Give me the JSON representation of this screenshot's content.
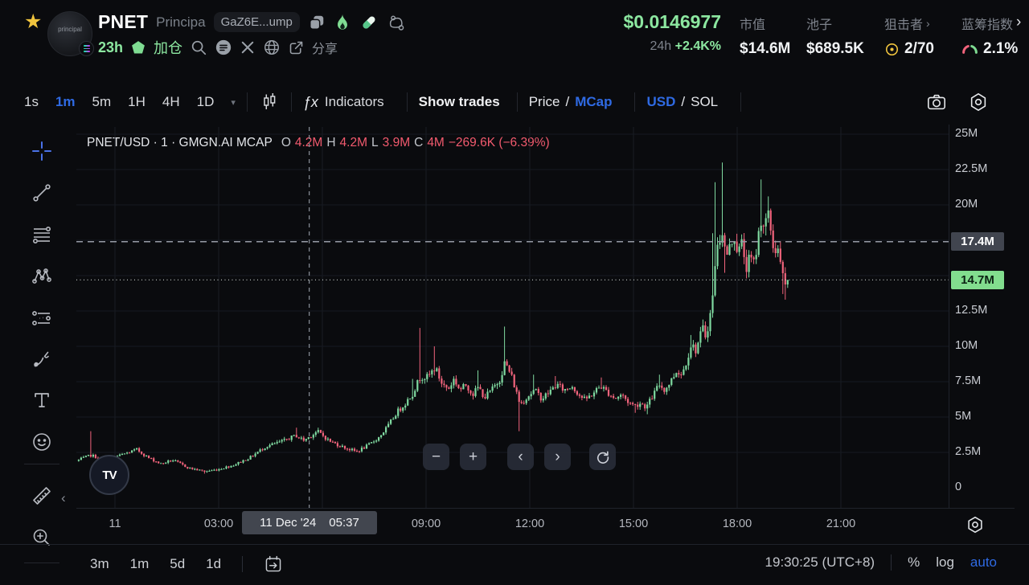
{
  "header": {
    "token_symbol": "PNET",
    "token_name": "Principa",
    "contract": "GaZ6E...ump",
    "age": "23h",
    "add_position_label": "加仓",
    "share_label": "分享",
    "price": "$0.0146977",
    "change_label": "24h",
    "change_value": "+2.4K%",
    "stats": [
      {
        "label": "市值",
        "value": "$14.6M"
      },
      {
        "label": "池子",
        "value": "$689.5K"
      },
      {
        "label": "狙击者",
        "value": "2/70"
      },
      {
        "label": "蓝筹指数",
        "value": "2.1%"
      }
    ],
    "collapse_chevron": "›"
  },
  "toolbar": {
    "intervals": [
      "1s",
      "1m",
      "5m",
      "1H",
      "4H",
      "1D"
    ],
    "active_interval": "1m",
    "caret": "▾",
    "indicators_label": "Indicators",
    "fx": "ƒx",
    "show_trades_label": "Show trades",
    "price_label": "Price",
    "slash": "/",
    "mcap_label": "MCap",
    "usd_label": "USD",
    "sol_label": "SOL"
  },
  "legend": {
    "symbol_text": "PNET/USD · 1 · GMGN.AI MCAP",
    "o_label": "O",
    "o": "4.2M",
    "h_label": "H",
    "h": "4.2M",
    "l_label": "L",
    "l": "3.9M",
    "c_label": "C",
    "c": "4M",
    "change": "−269.6K (−6.39%)"
  },
  "axis_price": {
    "ticks": [
      {
        "v": 25,
        "label": "25M"
      },
      {
        "v": 22.5,
        "label": "22.5M"
      },
      {
        "v": 20,
        "label": "20M"
      },
      {
        "v": 12.5,
        "label": "12.5M"
      },
      {
        "v": 10,
        "label": "10M"
      },
      {
        "v": 7.5,
        "label": "7.5M"
      },
      {
        "v": 5,
        "label": "5M"
      },
      {
        "v": 2.5,
        "label": "2.5M"
      },
      {
        "v": 0,
        "label": "0"
      }
    ],
    "crosshair_badge": "17.4M",
    "last_badge": "14.7M"
  },
  "axis_time": {
    "ticks": [
      {
        "h": 0,
        "label": "11"
      },
      {
        "h": 3,
        "label": "03:00"
      },
      {
        "h": 9,
        "label": "09:00"
      },
      {
        "h": 12,
        "label": "12:00"
      },
      {
        "h": 15,
        "label": "15:00"
      },
      {
        "h": 18,
        "label": "18:00"
      },
      {
        "h": 21,
        "label": "21:00"
      }
    ],
    "crosshair_date": "11 Dec '24",
    "crosshair_time": "05:37"
  },
  "nav": {
    "zoom_out": "−",
    "zoom_in": "+",
    "pan_left": "‹",
    "pan_right": "›"
  },
  "tv_logo_text": "TV",
  "bottom": {
    "ranges": [
      "3m",
      "1m",
      "5d",
      "1d"
    ],
    "clock": "19:30:25 (UTC+8)",
    "percent_label": "%",
    "log_label": "log",
    "auto_label": "auto"
  },
  "colors": {
    "accent_green": "#8ce7a0",
    "accent_blue": "#2f6ae3",
    "candle_up": "#7fd9a0",
    "candle_down": "#f2647c",
    "value_red": "#f25a6e",
    "badge_gray": "#41454f",
    "badge_green": "#82dd8e",
    "star_yellow": "#f0c43e"
  },
  "chart_data": {
    "type": "candlestick",
    "title": "PNET/USD · 1 · GMGN.AI MCAP",
    "interval": "1m",
    "y_unit": "market cap, millions USD",
    "ylim": [
      0,
      26.6
    ],
    "y_ticks": [
      0,
      2.5,
      5,
      7.5,
      10,
      12.5,
      15,
      17.5,
      20,
      22.5,
      25
    ],
    "x_hour_gridlines": [
      0,
      3,
      6,
      9,
      12,
      15,
      18,
      21
    ],
    "x_hours_are_offset_from": "11 Dec '24 00:00 (UTC+8)",
    "last_price_m": 14.7,
    "crosshair": {
      "h": 5.62,
      "value_m": 17.4,
      "time": "11 Dec '24 05:37"
    },
    "anchors": [
      [
        -1.12,
        1.9
      ],
      [
        -0.7,
        2.3
      ],
      [
        -0.3,
        2.0
      ],
      [
        0.16,
        2.3
      ],
      [
        0.63,
        2.7
      ],
      [
        0.98,
        2.1
      ],
      [
        1.33,
        1.7
      ],
      [
        1.67,
        1.95
      ],
      [
        2.14,
        1.4
      ],
      [
        2.6,
        1.15
      ],
      [
        2.98,
        1.3
      ],
      [
        3.42,
        1.6
      ],
      [
        3.88,
        2.1
      ],
      [
        4.35,
        2.9
      ],
      [
        4.86,
        3.3
      ],
      [
        5.23,
        3.7
      ],
      [
        5.47,
        3.35
      ],
      [
        5.86,
        4.0
      ],
      [
        6.21,
        3.3
      ],
      [
        6.63,
        2.85
      ],
      [
        6.98,
        2.55
      ],
      [
        7.33,
        3.0
      ],
      [
        7.65,
        3.6
      ],
      [
        7.91,
        4.4
      ],
      [
        8.14,
        5.3
      ],
      [
        8.37,
        5.9
      ],
      [
        8.6,
        6.6
      ],
      [
        8.84,
        7.9
      ],
      [
        9.05,
        7.8
      ],
      [
        9.26,
        8.5
      ],
      [
        9.47,
        7.3
      ],
      [
        9.65,
        7.0
      ],
      [
        9.81,
        7.7
      ],
      [
        9.98,
        6.9
      ],
      [
        10.16,
        7.3
      ],
      [
        10.35,
        6.6
      ],
      [
        10.51,
        7.1
      ],
      [
        10.7,
        6.4
      ],
      [
        10.93,
        7.0
      ],
      [
        11.14,
        7.7
      ],
      [
        11.28,
        8.9
      ],
      [
        11.47,
        7.9
      ],
      [
        11.72,
        5.9
      ],
      [
        11.95,
        6.5
      ],
      [
        12.14,
        6.9
      ],
      [
        12.35,
        6.3
      ],
      [
        12.58,
        6.8
      ],
      [
        12.77,
        7.3
      ],
      [
        13.0,
        6.9
      ],
      [
        13.23,
        7.2
      ],
      [
        13.42,
        6.6
      ],
      [
        13.6,
        6.2
      ],
      [
        13.84,
        6.7
      ],
      [
        14.05,
        7.2
      ],
      [
        14.28,
        6.7
      ],
      [
        14.47,
        6.3
      ],
      [
        14.65,
        6.6
      ],
      [
        14.84,
        6.1
      ],
      [
        15.02,
        5.8
      ],
      [
        15.21,
        6.0
      ],
      [
        15.37,
        5.7
      ],
      [
        15.56,
        6.5
      ],
      [
        15.74,
        7.3
      ],
      [
        15.91,
        6.9
      ],
      [
        16.09,
        7.6
      ],
      [
        16.26,
        8.3
      ],
      [
        16.4,
        8.0
      ],
      [
        16.56,
        9.2
      ],
      [
        16.67,
        10.2
      ],
      [
        16.79,
        9.7
      ],
      [
        16.91,
        10.5
      ],
      [
        17.0,
        11.3
      ],
      [
        17.09,
        10.7
      ],
      [
        17.21,
        12.1
      ],
      [
        17.3,
        13.6
      ],
      [
        17.37,
        16.3
      ],
      [
        17.47,
        17.4
      ],
      [
        17.56,
        18.4
      ],
      [
        17.67,
        16.3
      ],
      [
        17.79,
        17.0
      ],
      [
        17.91,
        17.9
      ],
      [
        18.02,
        16.6
      ],
      [
        18.14,
        17.3
      ],
      [
        18.26,
        15.6
      ],
      [
        18.37,
        16.2
      ],
      [
        18.49,
        15.8
      ],
      [
        18.6,
        17.6
      ],
      [
        18.7,
        19.2
      ],
      [
        18.79,
        18.3
      ],
      [
        18.88,
        19.4
      ],
      [
        18.98,
        18.1
      ],
      [
        19.07,
        16.6
      ],
      [
        19.16,
        17.2
      ],
      [
        19.26,
        15.6
      ],
      [
        19.33,
        14.8
      ],
      [
        19.4,
        14.1
      ],
      [
        19.47,
        14.7
      ]
    ],
    "wick_spikes_high": [
      [
        -0.7,
        4.0
      ],
      [
        5.23,
        4.25
      ],
      [
        5.86,
        4.25
      ],
      [
        8.6,
        7.7
      ],
      [
        8.84,
        11.3
      ],
      [
        9.26,
        10.0
      ],
      [
        10.51,
        8.3
      ],
      [
        11.28,
        11.4
      ],
      [
        12.14,
        8.0
      ],
      [
        12.77,
        7.9
      ],
      [
        14.05,
        7.8
      ],
      [
        15.74,
        8.0
      ],
      [
        16.67,
        10.8
      ],
      [
        17.0,
        11.9
      ],
      [
        17.3,
        18.0
      ],
      [
        17.37,
        21.6
      ],
      [
        17.56,
        23.0
      ],
      [
        18.7,
        21.8
      ],
      [
        18.88,
        20.6
      ]
    ],
    "wick_spikes_low": [
      [
        2.6,
        1.0
      ],
      [
        11.72,
        4.0
      ],
      [
        15.02,
        5.3
      ],
      [
        15.37,
        5.2
      ],
      [
        17.67,
        15.2
      ],
      [
        18.26,
        14.8
      ],
      [
        19.33,
        13.7
      ],
      [
        19.4,
        13.3
      ]
    ]
  }
}
